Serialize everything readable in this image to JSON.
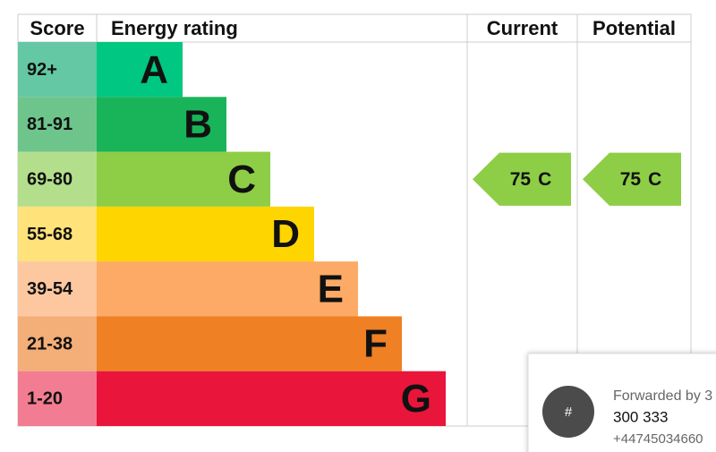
{
  "header": {
    "score": "Score",
    "energy_rating": "Energy rating",
    "current": "Current",
    "potential": "Potential"
  },
  "bands": [
    {
      "score": "92+",
      "letter": "A"
    },
    {
      "score": "81-91",
      "letter": "B"
    },
    {
      "score": "69-80",
      "letter": "C"
    },
    {
      "score": "55-68",
      "letter": "D"
    },
    {
      "score": "39-54",
      "letter": "E"
    },
    {
      "score": "21-38",
      "letter": "F"
    },
    {
      "score": "1-20",
      "letter": "G"
    }
  ],
  "current": {
    "rating": 75,
    "band": "C"
  },
  "potential": {
    "rating": 75,
    "band": "C"
  },
  "notification": {
    "icon": "#",
    "title": "Forwarded by 3",
    "name": "300 333",
    "phone": "+44745034660"
  }
}
